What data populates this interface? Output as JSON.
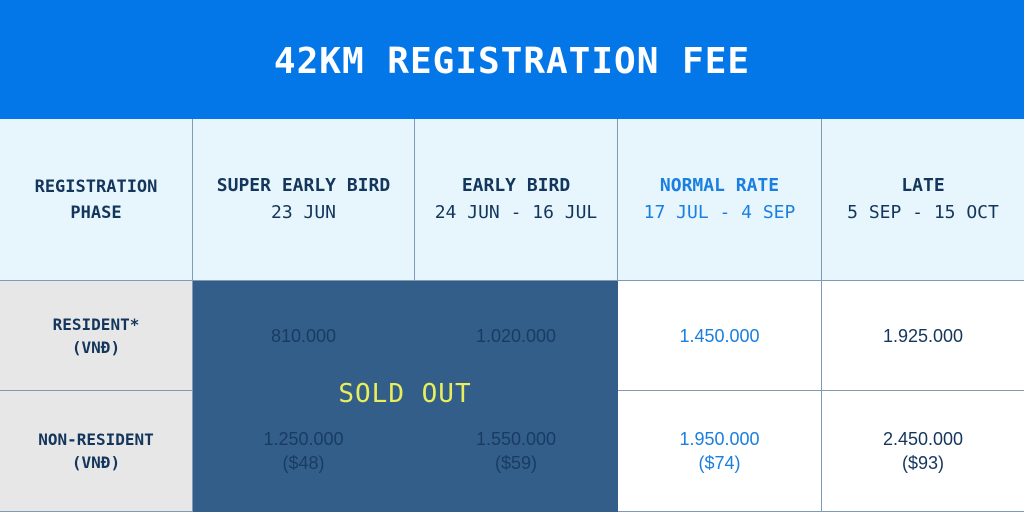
{
  "title": "42KM REGISTRATION FEE",
  "phase_label": [
    "REGISTRATION",
    "PHASE"
  ],
  "phases": [
    {
      "name": "SUPER EARLY BIRD",
      "dates": "23 JUN"
    },
    {
      "name": "EARLY BIRD",
      "dates": "24 JUN - 16 JUL"
    },
    {
      "name": "NORMAL RATE",
      "dates": "17 JUL - 4 SEP"
    },
    {
      "name": "LATE",
      "dates": "5 SEP - 15 OCT"
    }
  ],
  "rows": [
    {
      "label": [
        "RESIDENT*",
        "(VNĐ)"
      ],
      "prices": [
        [
          "810.000"
        ],
        [
          "1.020.000"
        ],
        [
          "1.450.000"
        ],
        [
          "1.925.000"
        ]
      ]
    },
    {
      "label": [
        "NON-RESIDENT",
        "(VNĐ)"
      ],
      "prices": [
        [
          "1.250.000",
          "($48)"
        ],
        [
          "1.550.000",
          "($59)"
        ],
        [
          "1.950.000",
          "($74)"
        ],
        [
          "2.450.000",
          "($93)"
        ]
      ]
    }
  ],
  "sold_out_label": "SOLD OUT",
  "colors": {
    "header_bg": "#0377e8",
    "highlight": "#1a7fe0",
    "sold_out_bg": "#335e8a",
    "sold_out_text": "#e8ef5a"
  }
}
